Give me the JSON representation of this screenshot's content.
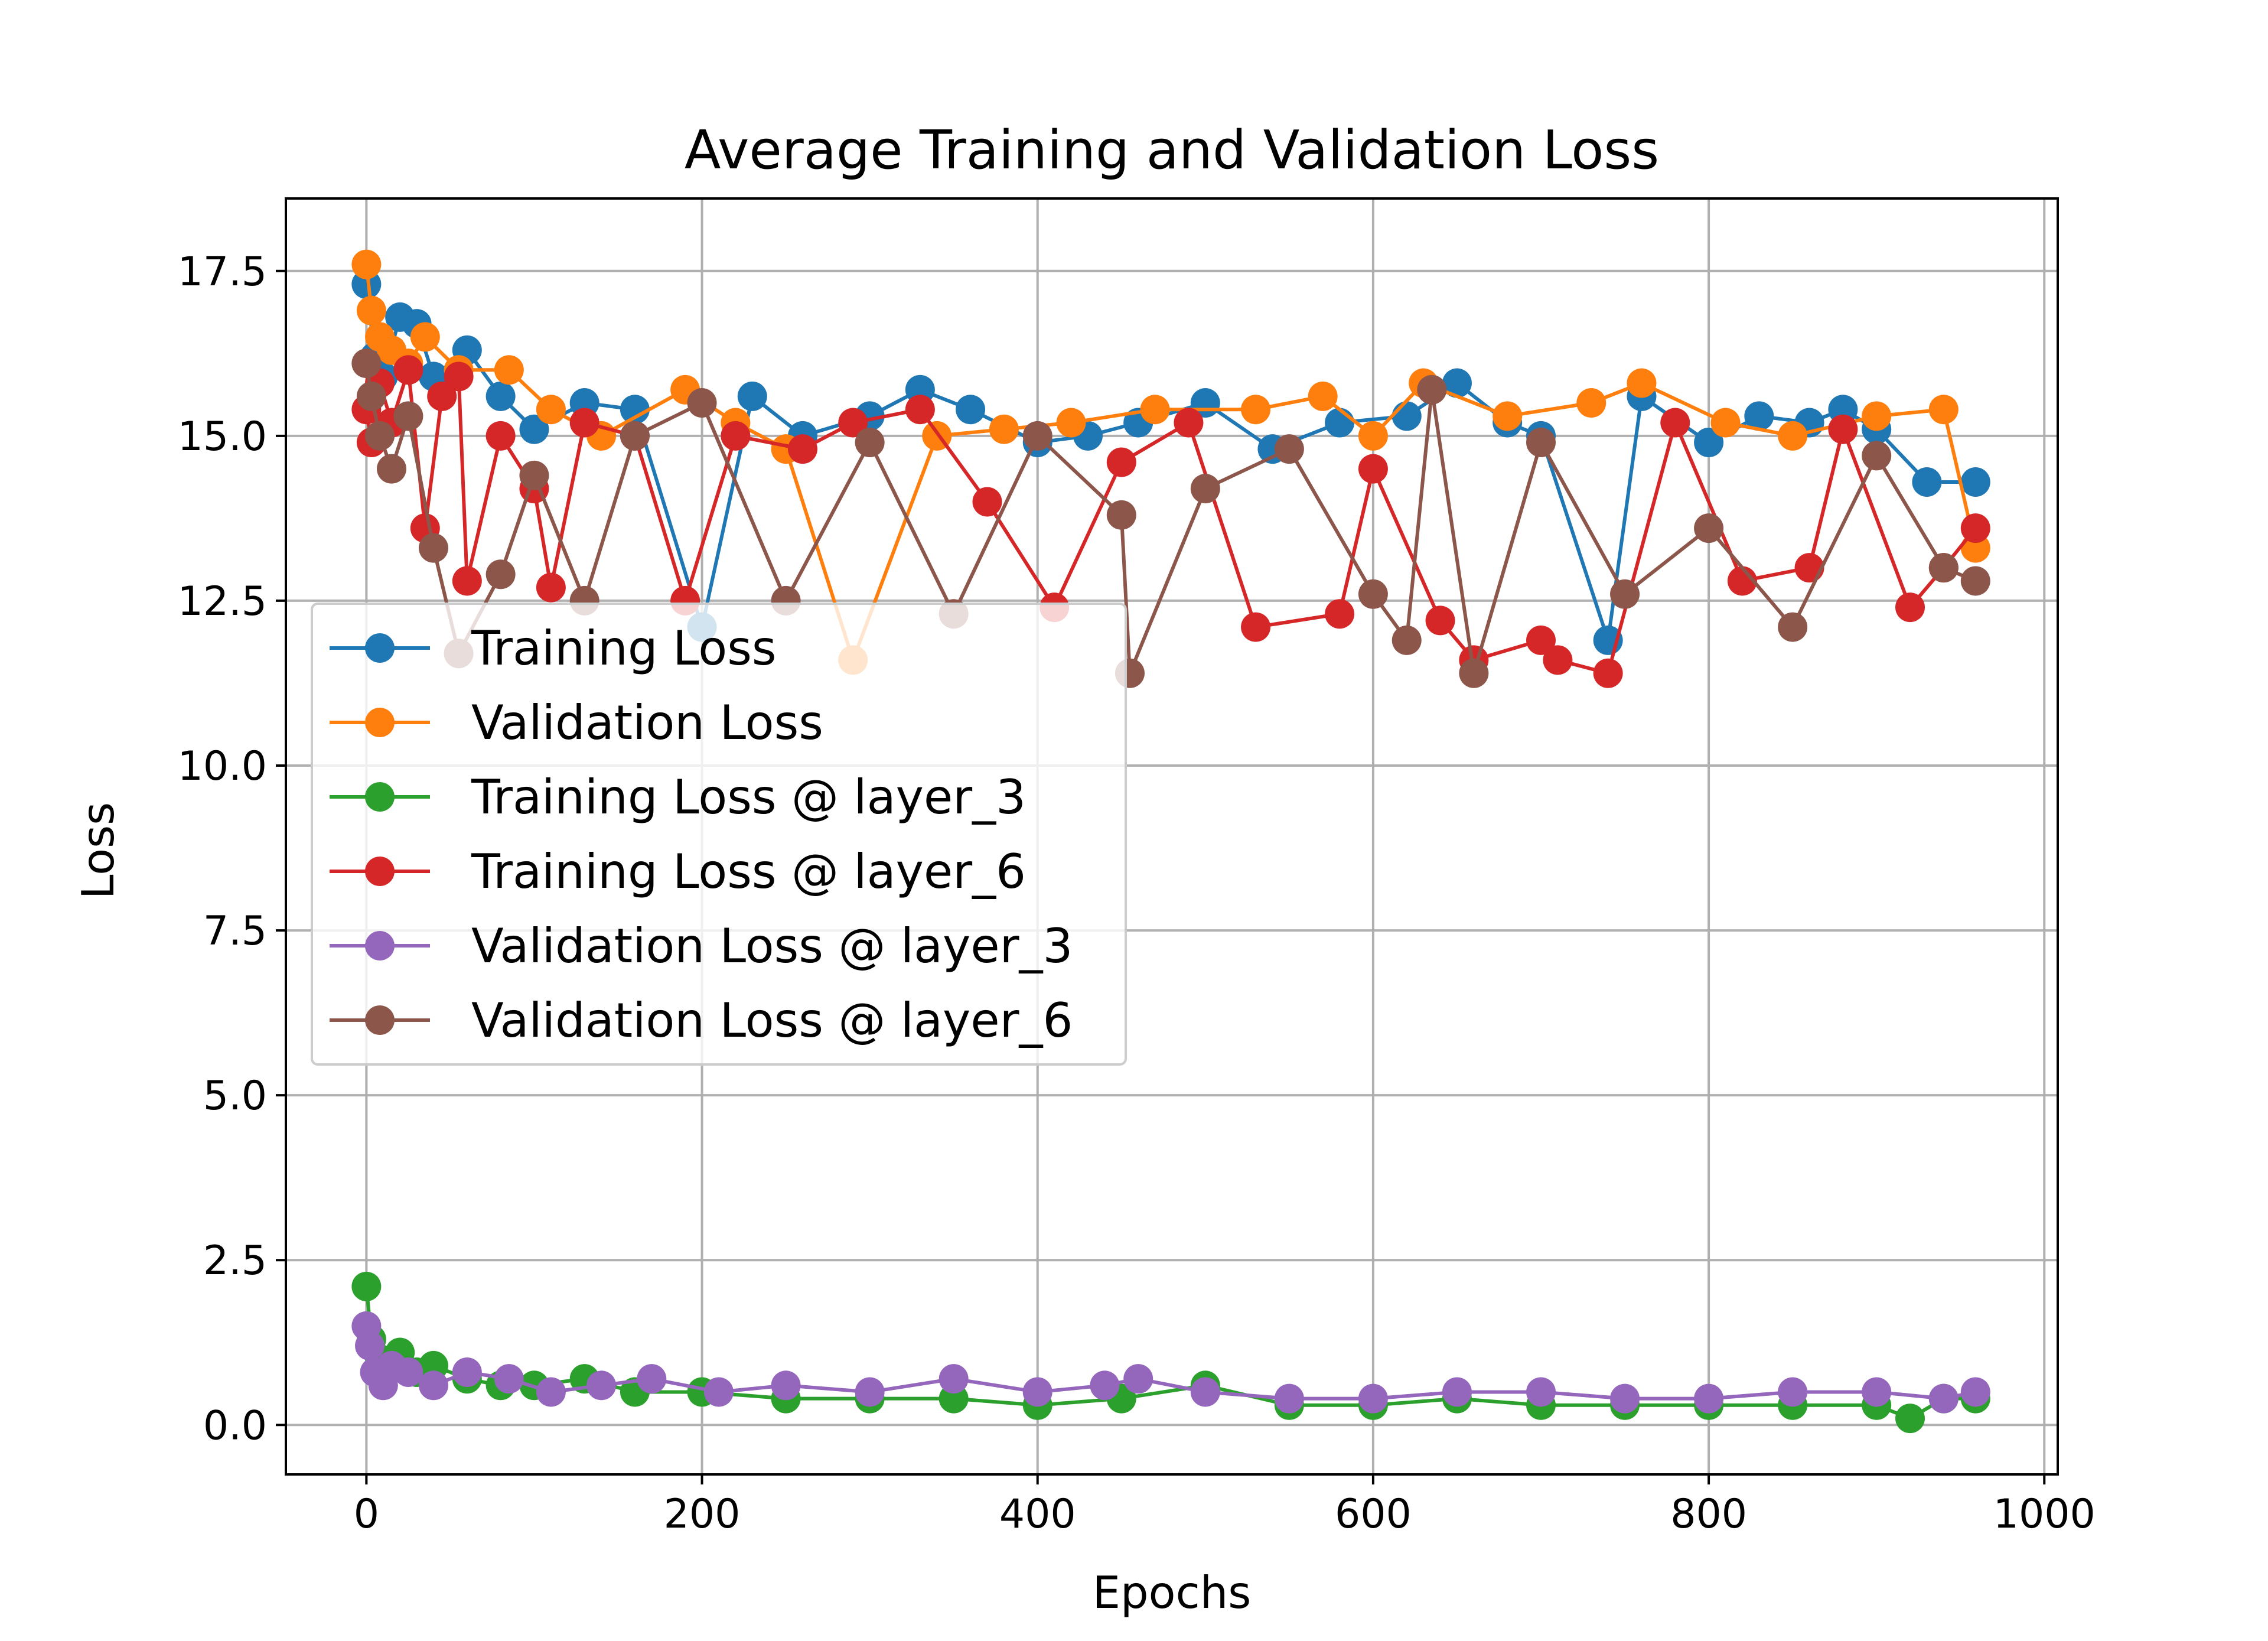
{
  "chart_data": {
    "type": "line",
    "title": "Average Training and Validation Loss",
    "xlabel": "Epochs",
    "ylabel": "Loss",
    "xlim": [
      -48,
      1008
    ],
    "ylim": [
      -0.75,
      18.6
    ],
    "x_ticks": [
      0,
      200,
      400,
      600,
      800,
      1000
    ],
    "x_tick_labels": [
      "0",
      "200",
      "400",
      "600",
      "800",
      "1000"
    ],
    "y_ticks": [
      0.0,
      2.5,
      5.0,
      7.5,
      10.0,
      12.5,
      15.0,
      17.5
    ],
    "y_tick_labels": [
      "0.0",
      "2.5",
      "5.0",
      "7.5",
      "10.0",
      "12.5",
      "15.0",
      "17.5"
    ],
    "grid": true,
    "legend_position": "center-left",
    "marker": "circle",
    "series": [
      {
        "name": "Training Loss",
        "color": "#1f77b4",
        "x": [
          0,
          5,
          10,
          20,
          30,
          40,
          60,
          80,
          100,
          130,
          160,
          200,
          230,
          260,
          300,
          330,
          360,
          400,
          430,
          460,
          500,
          540,
          580,
          620,
          650,
          680,
          700,
          740,
          760,
          800,
          830,
          860,
          880,
          900,
          930,
          959
        ],
        "values": [
          17.3,
          16.2,
          15.9,
          16.8,
          16.7,
          15.9,
          16.3,
          15.6,
          15.1,
          15.5,
          15.4,
          12.1,
          15.6,
          15.0,
          15.3,
          15.7,
          15.4,
          14.9,
          15.0,
          15.2,
          15.5,
          14.8,
          15.2,
          15.3,
          15.8,
          15.2,
          15.0,
          11.9,
          15.6,
          14.9,
          15.3,
          15.2,
          15.4,
          15.1,
          14.3,
          14.3
        ]
      },
      {
        "name": "Validation Loss",
        "color": "#ff7f0e",
        "x": [
          0,
          3,
          8,
          15,
          25,
          35,
          55,
          85,
          110,
          140,
          190,
          220,
          250,
          290,
          340,
          380,
          420,
          470,
          530,
          570,
          600,
          630,
          680,
          730,
          760,
          810,
          850,
          900,
          940,
          959
        ],
        "values": [
          17.6,
          16.9,
          16.5,
          16.3,
          16.1,
          16.5,
          16.0,
          16.0,
          15.4,
          15.0,
          15.7,
          15.2,
          14.8,
          11.6,
          15.0,
          15.1,
          15.2,
          15.4,
          15.4,
          15.6,
          15.0,
          15.8,
          15.3,
          15.5,
          15.8,
          15.2,
          15.0,
          15.3,
          15.4,
          13.3
        ]
      },
      {
        "name": "Training Loss @ layer_3",
        "color": "#2ca02c",
        "x": [
          0,
          3,
          8,
          15,
          20,
          30,
          40,
          60,
          80,
          100,
          130,
          160,
          200,
          250,
          300,
          350,
          400,
          450,
          500,
          550,
          600,
          650,
          700,
          750,
          800,
          850,
          900,
          920,
          940,
          959
        ],
        "values": [
          2.1,
          1.3,
          1.0,
          0.9,
          1.1,
          0.8,
          0.9,
          0.7,
          0.6,
          0.6,
          0.7,
          0.5,
          0.5,
          0.4,
          0.4,
          0.4,
          0.3,
          0.4,
          0.6,
          0.3,
          0.3,
          0.4,
          0.3,
          0.3,
          0.3,
          0.3,
          0.3,
          0.1,
          0.4,
          0.4
        ]
      },
      {
        "name": "Training Loss @ layer_6",
        "color": "#d62728",
        "x": [
          0,
          3,
          8,
          15,
          25,
          35,
          45,
          55,
          60,
          80,
          100,
          110,
          130,
          160,
          190,
          220,
          260,
          290,
          330,
          370,
          410,
          450,
          490,
          530,
          580,
          600,
          640,
          660,
          700,
          710,
          740,
          780,
          820,
          860,
          880,
          920,
          940,
          959
        ],
        "values": [
          15.4,
          14.9,
          15.8,
          15.2,
          16.0,
          13.6,
          15.6,
          15.9,
          12.8,
          15.0,
          14.2,
          12.7,
          15.2,
          15.0,
          12.5,
          15.0,
          14.8,
          15.2,
          15.4,
          14.0,
          12.4,
          14.6,
          15.2,
          12.1,
          12.3,
          14.5,
          12.2,
          11.6,
          11.9,
          11.6,
          11.4,
          15.2,
          12.8,
          13.0,
          15.1,
          12.4,
          13.0,
          13.6
        ]
      },
      {
        "name": "Validation Loss @ layer_3",
        "color": "#9467bd",
        "x": [
          0,
          2,
          5,
          10,
          15,
          25,
          40,
          60,
          85,
          110,
          140,
          170,
          210,
          250,
          300,
          350,
          400,
          440,
          460,
          500,
          550,
          600,
          650,
          700,
          750,
          800,
          850,
          900,
          940,
          959
        ],
        "values": [
          1.5,
          1.2,
          0.8,
          0.6,
          0.9,
          0.8,
          0.6,
          0.8,
          0.7,
          0.5,
          0.6,
          0.7,
          0.5,
          0.6,
          0.5,
          0.7,
          0.5,
          0.6,
          0.7,
          0.5,
          0.4,
          0.4,
          0.5,
          0.5,
          0.4,
          0.4,
          0.5,
          0.5,
          0.4,
          0.5
        ]
      },
      {
        "name": "Validation Loss @ layer_6",
        "color": "#8c564b",
        "x": [
          0,
          3,
          8,
          15,
          25,
          40,
          55,
          80,
          100,
          130,
          160,
          200,
          250,
          300,
          350,
          400,
          450,
          455,
          500,
          550,
          600,
          620,
          635,
          660,
          700,
          750,
          800,
          850,
          900,
          940,
          959
        ],
        "values": [
          16.1,
          15.6,
          15.0,
          14.5,
          15.3,
          13.3,
          11.7,
          12.9,
          14.4,
          12.5,
          15.0,
          15.5,
          12.5,
          14.9,
          12.3,
          15.0,
          13.8,
          11.4,
          14.2,
          14.8,
          12.6,
          11.9,
          15.7,
          11.4,
          14.9,
          12.6,
          13.6,
          12.1,
          14.7,
          13.0,
          12.8
        ]
      }
    ]
  }
}
